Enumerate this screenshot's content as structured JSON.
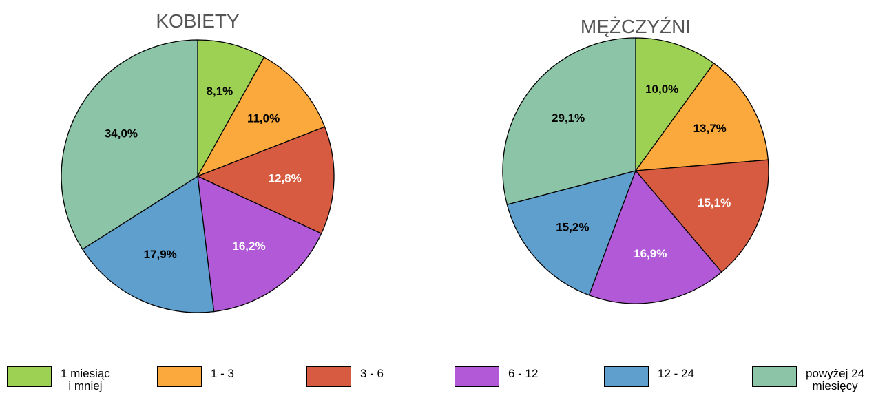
{
  "legend": {
    "labels": [
      "1 miesiąc\ni mniej",
      "1 - 3",
      "3 - 6",
      "6 - 12",
      "12 - 24",
      "powyżej 24\nmiesięcy"
    ],
    "colors": [
      "#9dd153",
      "#fba93c",
      "#d65b41",
      "#b159d6",
      "#5f9fce",
      "#8cc4a8"
    ]
  },
  "chart_data": [
    {
      "type": "pie",
      "title": "KOBIETY",
      "values": [
        8.1,
        11.0,
        12.8,
        16.2,
        17.9,
        34.0
      ],
      "value_labels": [
        "8,1%",
        "11,0%",
        "12,8%",
        "16,2%",
        "17,9%",
        "34,0%"
      ],
      "value_label_colors": [
        "#000",
        "#000",
        "#fff",
        "#fff",
        "#000",
        "#000"
      ]
    },
    {
      "type": "pie",
      "title": "MĘŻCZYŹNI",
      "values": [
        10.0,
        13.7,
        15.1,
        16.9,
        15.2,
        29.1
      ],
      "value_labels": [
        "10,0%",
        "13,7%",
        "15,1%",
        "16,9%",
        "15,2%",
        "29,1%"
      ],
      "value_label_colors": [
        "#000",
        "#000",
        "#fff",
        "#fff",
        "#000",
        "#000"
      ]
    }
  ]
}
